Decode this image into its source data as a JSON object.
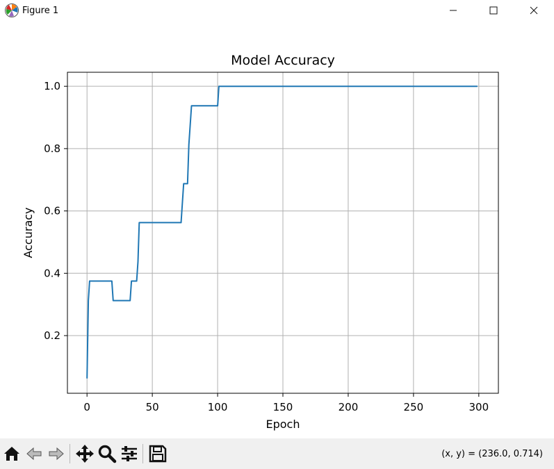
{
  "window": {
    "title": "Figure 1",
    "minimize_icon": "minimize-icon",
    "maximize_icon": "maximize-icon",
    "close_icon": "close-icon"
  },
  "toolbar": {
    "buttons": [
      {
        "icon": "home-icon"
      },
      {
        "icon": "back-arrow-icon"
      },
      {
        "icon": "forward-arrow-icon"
      },
      {
        "icon": "pan-icon"
      },
      {
        "icon": "zoom-icon"
      },
      {
        "icon": "configure-subplots-icon"
      },
      {
        "icon": "save-icon"
      }
    ],
    "coords": "(x, y) = (236.0, 0.714)"
  },
  "chart_data": {
    "type": "line",
    "title": "Model Accuracy",
    "xlabel": "Epoch",
    "ylabel": "Accuracy",
    "xlim": [
      -15,
      315
    ],
    "ylim": [
      0.015,
      1.045
    ],
    "xticks": [
      "0",
      "50",
      "100",
      "150",
      "200",
      "250",
      "300"
    ],
    "yticks": [
      "0.2",
      "0.4",
      "0.6",
      "0.8",
      "1.0"
    ],
    "grid": true,
    "line_color": "#1f77b4",
    "series": [
      {
        "x": [
          0,
          1,
          2,
          19,
          20,
          33,
          34,
          38,
          39,
          40,
          72,
          74,
          77,
          78,
          79,
          80,
          100,
          101,
          299
        ],
        "y": [
          0.0625,
          0.3125,
          0.375,
          0.375,
          0.3125,
          0.3125,
          0.375,
          0.375,
          0.4375,
          0.5625,
          0.5625,
          0.6875,
          0.6875,
          0.8125,
          0.875,
          0.9375,
          0.9375,
          1.0,
          1.0
        ]
      }
    ]
  }
}
